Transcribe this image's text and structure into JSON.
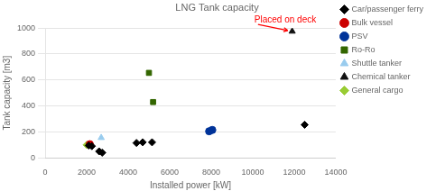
{
  "chart_data": {
    "type": "scatter",
    "title": "LNG Tank capacity",
    "xlabel": "Installed power [kW]",
    "ylabel": "Tank capacity [m3]",
    "xlim": [
      0,
      14000
    ],
    "ylim": [
      0,
      1000
    ],
    "xticks": [
      0,
      2000,
      4000,
      6000,
      8000,
      10000,
      12000,
      14000
    ],
    "yticks": [
      0,
      200,
      400,
      600,
      800,
      1000
    ],
    "grid": "y",
    "legend": "right",
    "annotations": [
      {
        "text": "Placed on deck",
        "x": 11900,
        "y": 975,
        "color": "red"
      }
    ],
    "series": [
      {
        "name": "Car/passenger ferry",
        "color": "#000000",
        "marker": "diamond",
        "x": [
          2100,
          2250,
          2600,
          2750,
          4400,
          4700,
          5150,
          12500
        ],
        "values": [
          95,
          90,
          50,
          40,
          115,
          120,
          120,
          255
        ]
      },
      {
        "name": "Bulk vessel",
        "color": "#cc0000",
        "marker": "circle",
        "x": [
          2150
        ],
        "values": [
          105
        ]
      },
      {
        "name": "PSV",
        "color": "#003399",
        "marker": "circle",
        "x": [
          7900,
          8050
        ],
        "values": [
          205,
          215
        ]
      },
      {
        "name": "Ro-Ro",
        "color": "#336600",
        "marker": "square",
        "x": [
          5000,
          5200
        ],
        "values": [
          655,
          430
        ]
      },
      {
        "name": "Shuttle tanker",
        "color": "#99ccee",
        "marker": "triangle",
        "x": [
          2700
        ],
        "values": [
          155
        ]
      },
      {
        "name": "Chemical tanker",
        "color": "#111111",
        "marker": "triangle",
        "x": [
          11900
        ],
        "values": [
          975
        ]
      },
      {
        "name": "General cargo",
        "color": "#99cc33",
        "marker": "diamond",
        "x": [
          2000
        ],
        "values": [
          100
        ]
      }
    ]
  }
}
